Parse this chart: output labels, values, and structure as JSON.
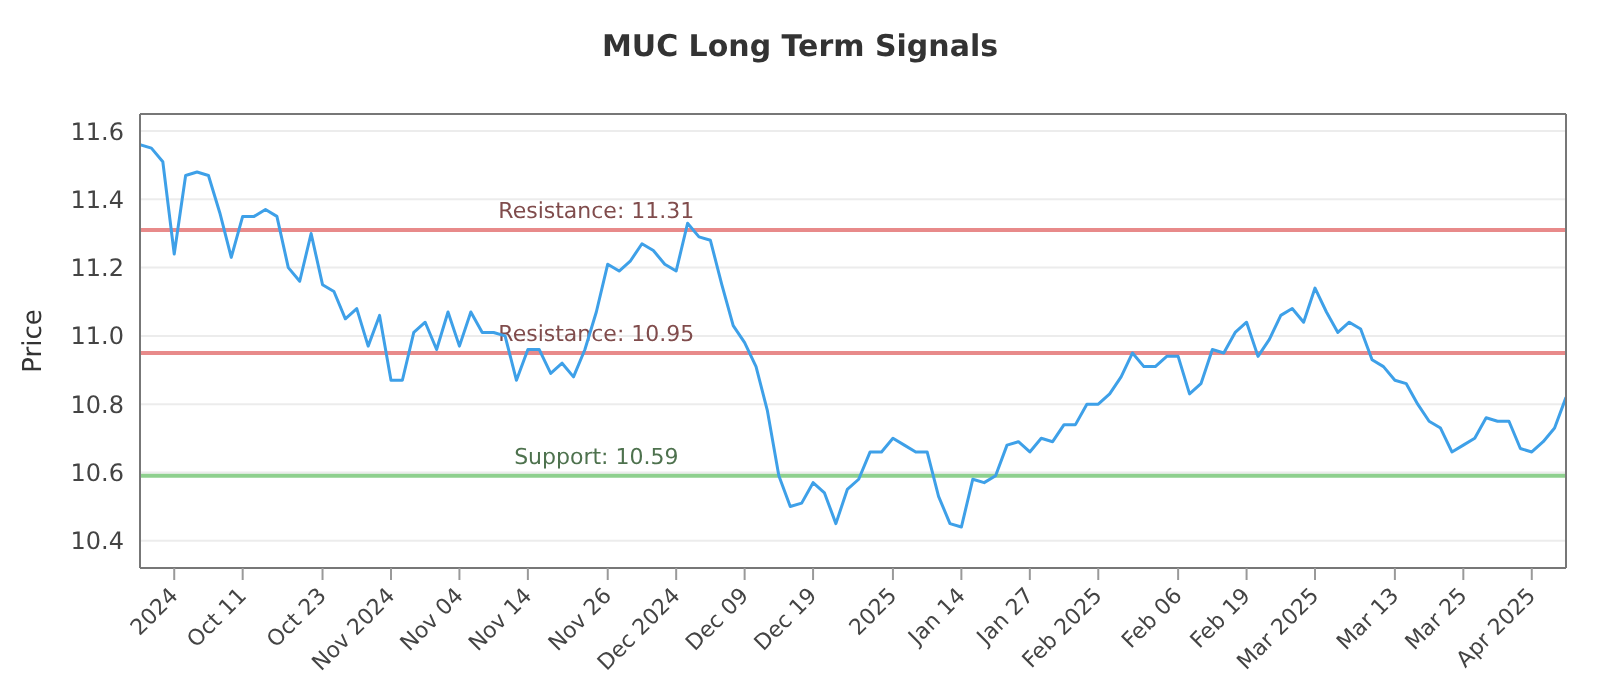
{
  "chart_data": {
    "type": "line",
    "title": "MUC Long Term Signals",
    "ylabel": "Price",
    "categories": [
      null,
      null,
      null,
      "2024",
      null,
      null,
      null,
      null,
      null,
      "Oct 11",
      null,
      null,
      null,
      null,
      null,
      null,
      "Oct 23",
      null,
      null,
      null,
      null,
      null,
      "Nov 2024",
      null,
      null,
      null,
      null,
      null,
      "Nov 04",
      null,
      null,
      null,
      null,
      null,
      "Nov 14",
      null,
      null,
      null,
      null,
      null,
      null,
      "Nov 26",
      null,
      null,
      null,
      null,
      null,
      "Dec 2024",
      null,
      null,
      null,
      null,
      null,
      "Dec 09",
      null,
      null,
      null,
      null,
      null,
      "Dec 19",
      null,
      null,
      null,
      null,
      null,
      null,
      "2025",
      null,
      null,
      null,
      null,
      null,
      "Jan 14",
      null,
      null,
      null,
      null,
      null,
      "Jan 27",
      null,
      null,
      null,
      null,
      null,
      "Feb 2025",
      null,
      null,
      null,
      null,
      null,
      null,
      "Feb 06",
      null,
      null,
      null,
      null,
      null,
      "Feb 19",
      null,
      null,
      null,
      null,
      null,
      "Mar 2025",
      null,
      null,
      null,
      null,
      null,
      null,
      "Mar 13",
      null,
      null,
      null,
      null,
      null,
      "Mar 25",
      null,
      null,
      null,
      null,
      null,
      "Apr 2025",
      null,
      null,
      null
    ],
    "series": [
      {
        "color": "#3ea0e8",
        "values": [
          11.56,
          11.55,
          11.51,
          11.24,
          11.47,
          11.48,
          11.47,
          11.36,
          11.23,
          11.35,
          11.35,
          11.37,
          11.35,
          11.2,
          11.16,
          11.3,
          11.15,
          11.13,
          11.05,
          11.08,
          10.97,
          11.06,
          10.87,
          10.87,
          11.01,
          11.04,
          10.96,
          11.07,
          10.97,
          11.07,
          11.01,
          11.01,
          11.0,
          10.87,
          10.96,
          10.96,
          10.89,
          10.92,
          10.88,
          10.96,
          11.07,
          11.21,
          11.19,
          11.22,
          11.27,
          11.25,
          11.21,
          11.19,
          11.33,
          11.29,
          11.28,
          11.15,
          11.03,
          10.98,
          10.91,
          10.78,
          10.59,
          10.5,
          10.51,
          10.57,
          10.54,
          10.45,
          10.55,
          10.58,
          10.66,
          10.66,
          10.7,
          10.68,
          10.66,
          10.66,
          10.53,
          10.45,
          10.44,
          10.58,
          10.57,
          10.59,
          10.68,
          10.69,
          10.66,
          10.7,
          10.69,
          10.74,
          10.74,
          10.8,
          10.8,
          10.83,
          10.88,
          10.95,
          10.91,
          10.91,
          10.94,
          10.94,
          10.83,
          10.86,
          10.96,
          10.95,
          11.01,
          11.04,
          10.94,
          10.99,
          11.06,
          11.08,
          11.04,
          11.14,
          11.07,
          11.01,
          11.04,
          11.02,
          10.93,
          10.91,
          10.87,
          10.86,
          10.8,
          10.75,
          10.73,
          10.66,
          10.68,
          10.7,
          10.76,
          10.75,
          10.75,
          10.67,
          10.66,
          10.69,
          10.73,
          10.82
        ]
      }
    ],
    "ylim": [
      10.32,
      11.65
    ],
    "yticks": [
      10.4,
      10.6,
      10.8,
      {
        "value": 11.0,
        "label": "11.0"
      },
      11.2,
      11.4,
      11.6
    ],
    "grid": "y",
    "marker": "none",
    "line_style": "solid",
    "ref_lines": [
      {
        "axis": "y",
        "value": 11.31,
        "label": "Resistance: 11.31",
        "color": "#e88a8a"
      },
      {
        "axis": "y",
        "value": 10.95,
        "label": "Resistance: 10.95",
        "color": "#e88a8a"
      },
      {
        "axis": "y",
        "value": 10.59,
        "label": "Support: 10.59",
        "color": "#8ed08e"
      }
    ]
  }
}
